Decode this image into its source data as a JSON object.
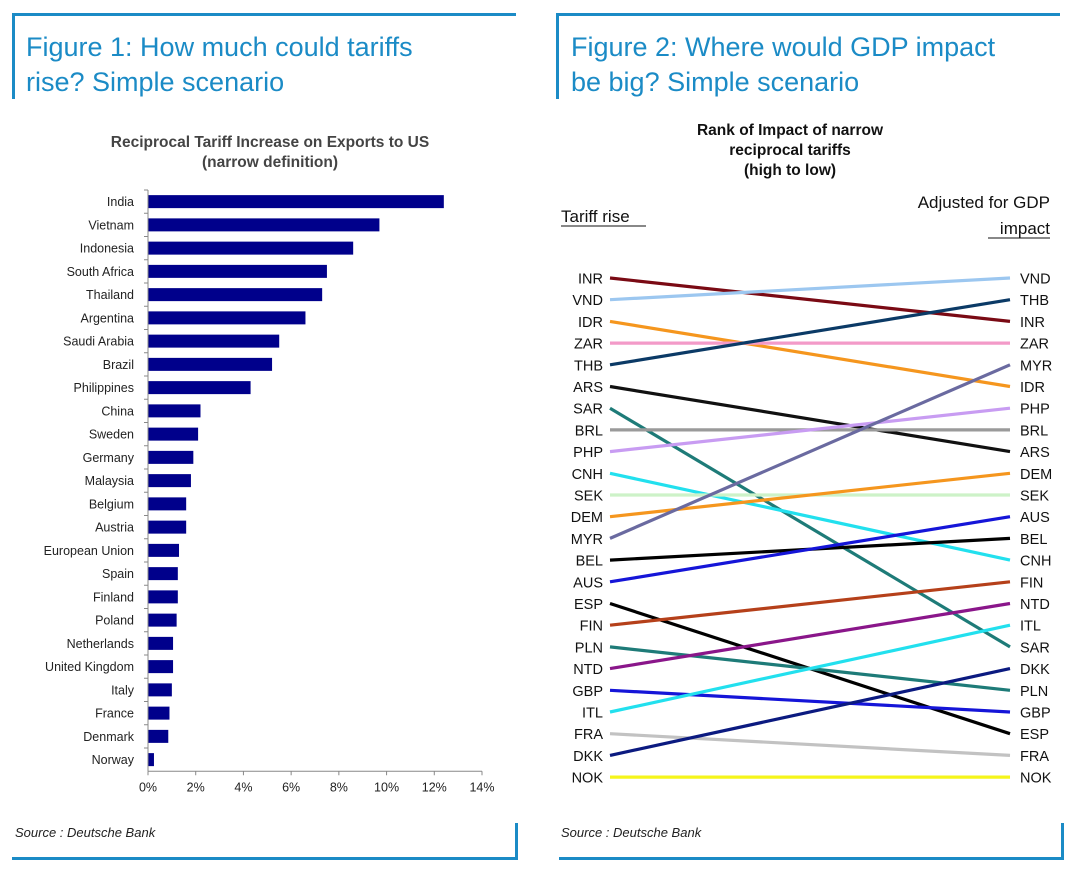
{
  "figure1": {
    "heading_line1": "Figure 1: How much could tariffs",
    "heading_line2": "rise? Simple scenario",
    "source": "Source : Deutsche Bank",
    "colors": {
      "frame": "#1b8bc6",
      "bar": "#00008b"
    }
  },
  "figure2": {
    "heading_line1": "Figure 2: Where would GDP impact",
    "heading_line2": "be big? Simple scenario",
    "source": "Source : Deutsche Bank",
    "colors": {
      "frame": "#1b8bc6"
    }
  },
  "chart_data": [
    {
      "type": "bar",
      "orientation": "horizontal",
      "title_line1": "Reciprocal Tariff Increase on Exports to US",
      "title_line2": "(narrow definition)",
      "categories": [
        "India",
        "Vietnam",
        "Indonesia",
        "South Africa",
        "Thailand",
        "Argentina",
        "Saudi Arabia",
        "Brazil",
        "Philippines",
        "China",
        "Sweden",
        "Germany",
        "Malaysia",
        "Belgium",
        "Austria",
        "European Union",
        "Spain",
        "Finland",
        "Poland",
        "Netherlands",
        "United Kingdom",
        "Italy",
        "France",
        "Denmark",
        "Norway"
      ],
      "values": [
        12.4,
        9.7,
        8.6,
        7.5,
        7.3,
        6.6,
        5.5,
        5.2,
        4.3,
        2.2,
        2.1,
        1.9,
        1.8,
        1.6,
        1.6,
        1.3,
        1.25,
        1.25,
        1.2,
        1.05,
        1.05,
        1.0,
        0.9,
        0.85,
        0.25
      ],
      "xlim": [
        0,
        14
      ],
      "xticks": [
        "0%",
        "2%",
        "4%",
        "6%",
        "8%",
        "10%",
        "12%",
        "14%"
      ],
      "grid": false
    },
    {
      "type": "slope",
      "title_line1": "Rank of Impact of narrow",
      "title_line2": "reciprocal tariffs",
      "title_line3": "(high to low)",
      "left_header": "Tariff rise",
      "right_header_line1": "Adjusted for GDP",
      "right_header_line2": "impact",
      "left_order": [
        "INR",
        "VND",
        "IDR",
        "ZAR",
        "THB",
        "ARS",
        "SAR",
        "BRL",
        "PHP",
        "CNH",
        "SEK",
        "DEM",
        "MYR",
        "BEL",
        "AUS",
        "ESP",
        "FIN",
        "PLN",
        "NTD",
        "GBP",
        "ITL",
        "FRA",
        "DKK",
        "NOK"
      ],
      "right_order": [
        "VND",
        "THB",
        "INR",
        "ZAR",
        "MYR",
        "IDR",
        "PHP",
        "BRL",
        "ARS",
        "DEM",
        "SEK",
        "AUS",
        "BEL",
        "CNH",
        "FIN",
        "NTD",
        "ITL",
        "SAR",
        "DKK",
        "PLN",
        "GBP",
        "ESP",
        "FRA",
        "NOK"
      ],
      "series": [
        {
          "code": "INR",
          "left_rank": 1,
          "right_rank": 3,
          "color": "#7a0a14"
        },
        {
          "code": "VND",
          "left_rank": 2,
          "right_rank": 1,
          "color": "#9cc7f0"
        },
        {
          "code": "IDR",
          "left_rank": 3,
          "right_rank": 6,
          "color": "#f5961e"
        },
        {
          "code": "ZAR",
          "left_rank": 4,
          "right_rank": 4,
          "color": "#f39ac8"
        },
        {
          "code": "THB",
          "left_rank": 5,
          "right_rank": 2,
          "color": "#0b3a66"
        },
        {
          "code": "ARS",
          "left_rank": 6,
          "right_rank": 9,
          "color": "#111111"
        },
        {
          "code": "SAR",
          "left_rank": 7,
          "right_rank": 18,
          "color": "#1e7b78"
        },
        {
          "code": "BRL",
          "left_rank": 8,
          "right_rank": 8,
          "color": "#9a9a9a"
        },
        {
          "code": "PHP",
          "left_rank": 9,
          "right_rank": 7,
          "color": "#c89cf2"
        },
        {
          "code": "CNH",
          "left_rank": 10,
          "right_rank": 14,
          "color": "#22e0ee"
        },
        {
          "code": "SEK",
          "left_rank": 11,
          "right_rank": 11,
          "color": "#cdf2c8"
        },
        {
          "code": "DEM",
          "left_rank": 12,
          "right_rank": 10,
          "color": "#f5961e"
        },
        {
          "code": "MYR",
          "left_rank": 13,
          "right_rank": 5,
          "color": "#6a6aa0"
        },
        {
          "code": "BEL",
          "left_rank": 14,
          "right_rank": 13,
          "color": "#000000"
        },
        {
          "code": "AUS",
          "left_rank": 15,
          "right_rank": 12,
          "color": "#1515d8"
        },
        {
          "code": "ESP",
          "left_rank": 16,
          "right_rank": 22,
          "color": "#000000"
        },
        {
          "code": "FIN",
          "left_rank": 17,
          "right_rank": 15,
          "color": "#b5401a"
        },
        {
          "code": "PLN",
          "left_rank": 18,
          "right_rank": 20,
          "color": "#1e7b78"
        },
        {
          "code": "NTD",
          "left_rank": 19,
          "right_rank": 16,
          "color": "#8a168a"
        },
        {
          "code": "GBP",
          "left_rank": 20,
          "right_rank": 21,
          "color": "#1515d8"
        },
        {
          "code": "ITL",
          "left_rank": 21,
          "right_rank": 17,
          "color": "#22e0ee"
        },
        {
          "code": "FRA",
          "left_rank": 22,
          "right_rank": 23,
          "color": "#c2c2c2"
        },
        {
          "code": "DKK",
          "left_rank": 23,
          "right_rank": 19,
          "color": "#0b1a80"
        },
        {
          "code": "NOK",
          "left_rank": 24,
          "right_rank": 24,
          "color": "#f5f51a"
        }
      ]
    }
  ]
}
